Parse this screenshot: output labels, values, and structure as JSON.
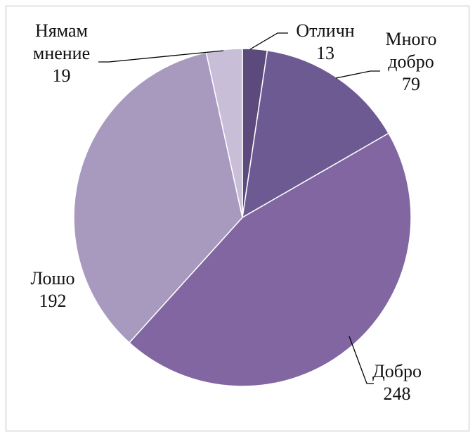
{
  "chart_data": {
    "type": "pie",
    "categories": [
      "Отличн",
      "Много добро",
      "Добро",
      "Лошо",
      "Нямам мнение"
    ],
    "values": [
      13,
      79,
      248,
      192,
      19
    ],
    "colors": [
      "#5d4a7c",
      "#6e5a92",
      "#8166a2",
      "#a899be",
      "#c9bed8"
    ]
  }
}
